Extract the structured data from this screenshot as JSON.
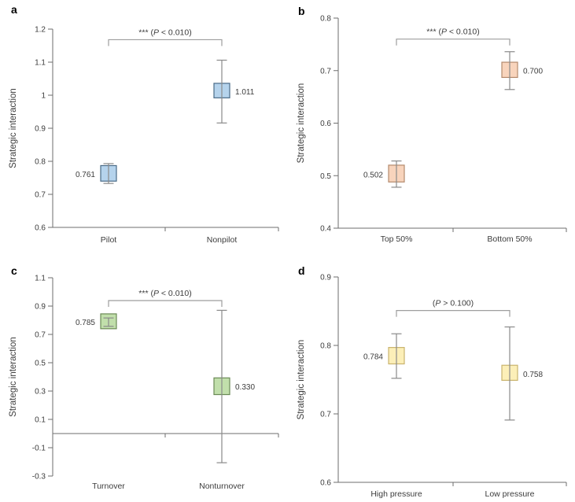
{
  "page": {
    "background": "#ffffff"
  },
  "styles": {
    "axis_color": "#6e6e6e",
    "whisker_color": "#8a8a8a",
    "bracket_color": "#9e9e9e",
    "text_color": "#3c3c3c",
    "letter_color": "#000000"
  },
  "chart_data": [
    {
      "panel_letter": "a",
      "type": "box-whisker",
      "ylabel": "Strategic interaction",
      "ylim": [
        0.6,
        1.2
      ],
      "yticks": [
        0.6,
        0.7,
        0.8,
        0.9,
        1.0,
        1.1,
        1.2
      ],
      "ytick_labels": [
        "0.6",
        "0.7",
        "0.8",
        "0.9",
        "1",
        "1.1",
        "1.2"
      ],
      "xaxis_at": 0.6,
      "categories": [
        "Pilot",
        "Nonpilot"
      ],
      "series": [
        {
          "category": "Pilot",
          "value": 0.761,
          "value_label": "0.761",
          "label_side": "left",
          "box": [
            0.74,
            0.787
          ],
          "whiskers": [
            0.733,
            0.793
          ]
        },
        {
          "category": "Nonpilot",
          "value": 1.011,
          "value_label": "1.011",
          "label_side": "right",
          "box": [
            0.992,
            1.036
          ],
          "whiskers": [
            0.916,
            1.106
          ]
        }
      ],
      "box_fill": "#b5d3ec",
      "box_stroke": "#4a6b87",
      "significance": {
        "pre": "*** (",
        "p": "P",
        "post": " < 0.010)",
        "bracket_y": 1.168
      }
    },
    {
      "panel_letter": "b",
      "type": "box-whisker",
      "ylabel": "Strategic interaction",
      "ylim": [
        0.4,
        0.8
      ],
      "yticks": [
        0.4,
        0.5,
        0.6,
        0.7,
        0.8
      ],
      "ytick_labels": [
        "0.4",
        "0.5",
        "0.6",
        "0.7",
        "0.8"
      ],
      "xaxis_at": 0.4,
      "categories": [
        "Top 50%",
        "Bottom 50%"
      ],
      "series": [
        {
          "category": "Top 50%",
          "value": 0.502,
          "value_label": "0.502",
          "label_side": "left",
          "box": [
            0.488,
            0.52
          ],
          "whiskers": [
            0.478,
            0.528
          ]
        },
        {
          "category": "Bottom 50%",
          "value": 0.7,
          "value_label": "0.700",
          "label_side": "right",
          "box": [
            0.687,
            0.716
          ],
          "whiskers": [
            0.664,
            0.736
          ]
        }
      ],
      "box_fill": "#f8d4bc",
      "box_stroke": "#b38a6d",
      "significance": {
        "pre": "*** (",
        "p": "P",
        "post": " < 0.010)",
        "bracket_y": 0.76
      }
    },
    {
      "panel_letter": "c",
      "type": "box-whisker",
      "ylabel": "Strategic interaction",
      "ylim": [
        -0.3,
        1.1
      ],
      "yticks": [
        -0.3,
        -0.1,
        0.1,
        0.3,
        0.5,
        0.7,
        0.9,
        1.1
      ],
      "ytick_labels": [
        "-0.3",
        "-0.1",
        "0.1",
        "0.3",
        "0.5",
        "0.7",
        "0.9",
        "1.1"
      ],
      "xaxis_at": 0.0,
      "categories": [
        "Turnover",
        "Nonturnover"
      ],
      "series": [
        {
          "category": "Turnover",
          "value": 0.785,
          "value_label": "0.785",
          "label_side": "left",
          "box": [
            0.74,
            0.845
          ],
          "whiskers": [
            0.757,
            0.816
          ]
        },
        {
          "category": "Nonturnover",
          "value": 0.33,
          "value_label": "0.330",
          "label_side": "right",
          "box": [
            0.275,
            0.393
          ],
          "whiskers": [
            -0.206,
            0.87
          ]
        }
      ],
      "box_fill": "#c1dfab",
      "box_stroke": "#6b8a56",
      "significance": {
        "pre": "*** (",
        "p": "P",
        "post": " < 0.010)",
        "bracket_y": 0.939
      }
    },
    {
      "panel_letter": "d",
      "type": "box-whisker",
      "ylabel": "Strategic interaction",
      "ylim": [
        0.6,
        0.9
      ],
      "yticks": [
        0.6,
        0.7,
        0.8,
        0.9
      ],
      "ytick_labels": [
        "0.6",
        "0.7",
        "0.8",
        "0.9"
      ],
      "xaxis_at": 0.6,
      "categories": [
        "High pressure",
        "Low pressure"
      ],
      "series": [
        {
          "category": "High pressure",
          "value": 0.784,
          "value_label": "0.784",
          "label_side": "left",
          "box": [
            0.773,
            0.797
          ],
          "whiskers": [
            0.752,
            0.817
          ]
        },
        {
          "category": "Low pressure",
          "value": 0.758,
          "value_label": "0.758",
          "label_side": "right",
          "box": [
            0.749,
            0.771
          ],
          "whiskers": [
            0.691,
            0.827
          ]
        }
      ],
      "box_fill": "#fcefb8",
      "box_stroke": "#c9b36e",
      "significance": {
        "pre": "(",
        "p": "P",
        "post": " > 0.100)",
        "bracket_y": 0.851
      }
    }
  ]
}
